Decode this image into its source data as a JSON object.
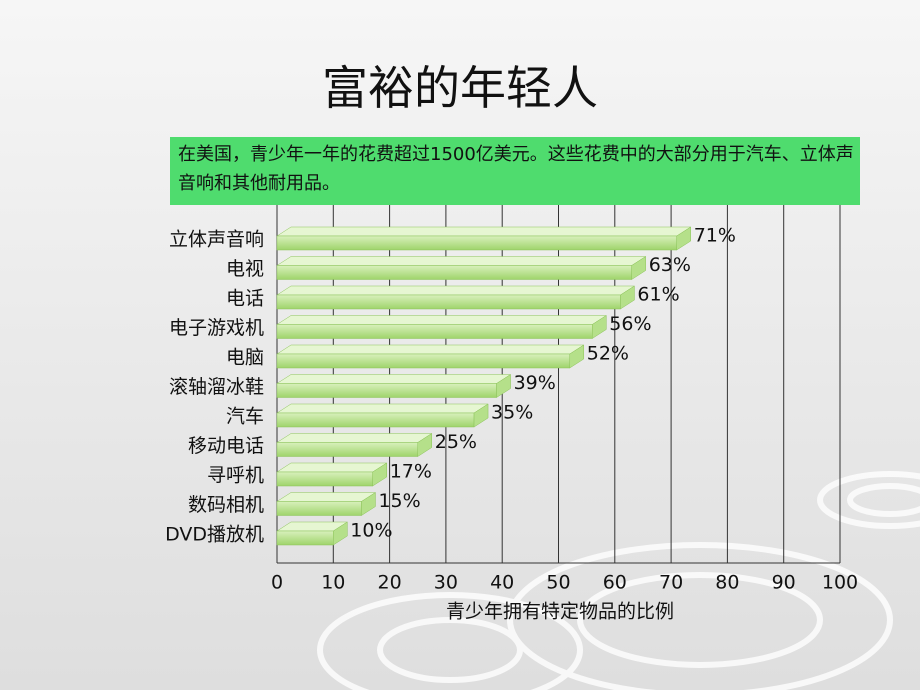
{
  "chart_data": {
    "type": "bar3d",
    "title": "富裕的年轻人",
    "annotation": "在美国，青少年一年的花费超过1500亿美元。这些花费中的大部分用于汽车、立体声音响和其他耐用品。",
    "categories": [
      "立体声音响",
      "电视",
      "电话",
      "电子游戏机",
      "电脑",
      "滚轴溜冰鞋",
      "汽车",
      "移动电话",
      "寻呼机",
      "数码相机",
      "DVD播放机"
    ],
    "values": [
      71,
      63,
      61,
      56,
      52,
      39,
      35,
      25,
      17,
      15,
      10
    ],
    "value_labels": [
      "71%",
      "63%",
      "61%",
      "56%",
      "52%",
      "39%",
      "35%",
      "25%",
      "17%",
      "15%",
      "10%"
    ],
    "color": "#b5e08a",
    "xlabel": "青少年拥有特定物品的比例",
    "xlim": [
      0,
      100
    ],
    "xticks": [
      0,
      10,
      20,
      30,
      40,
      50,
      60,
      70,
      80,
      90,
      100
    ],
    "grid": true
  }
}
